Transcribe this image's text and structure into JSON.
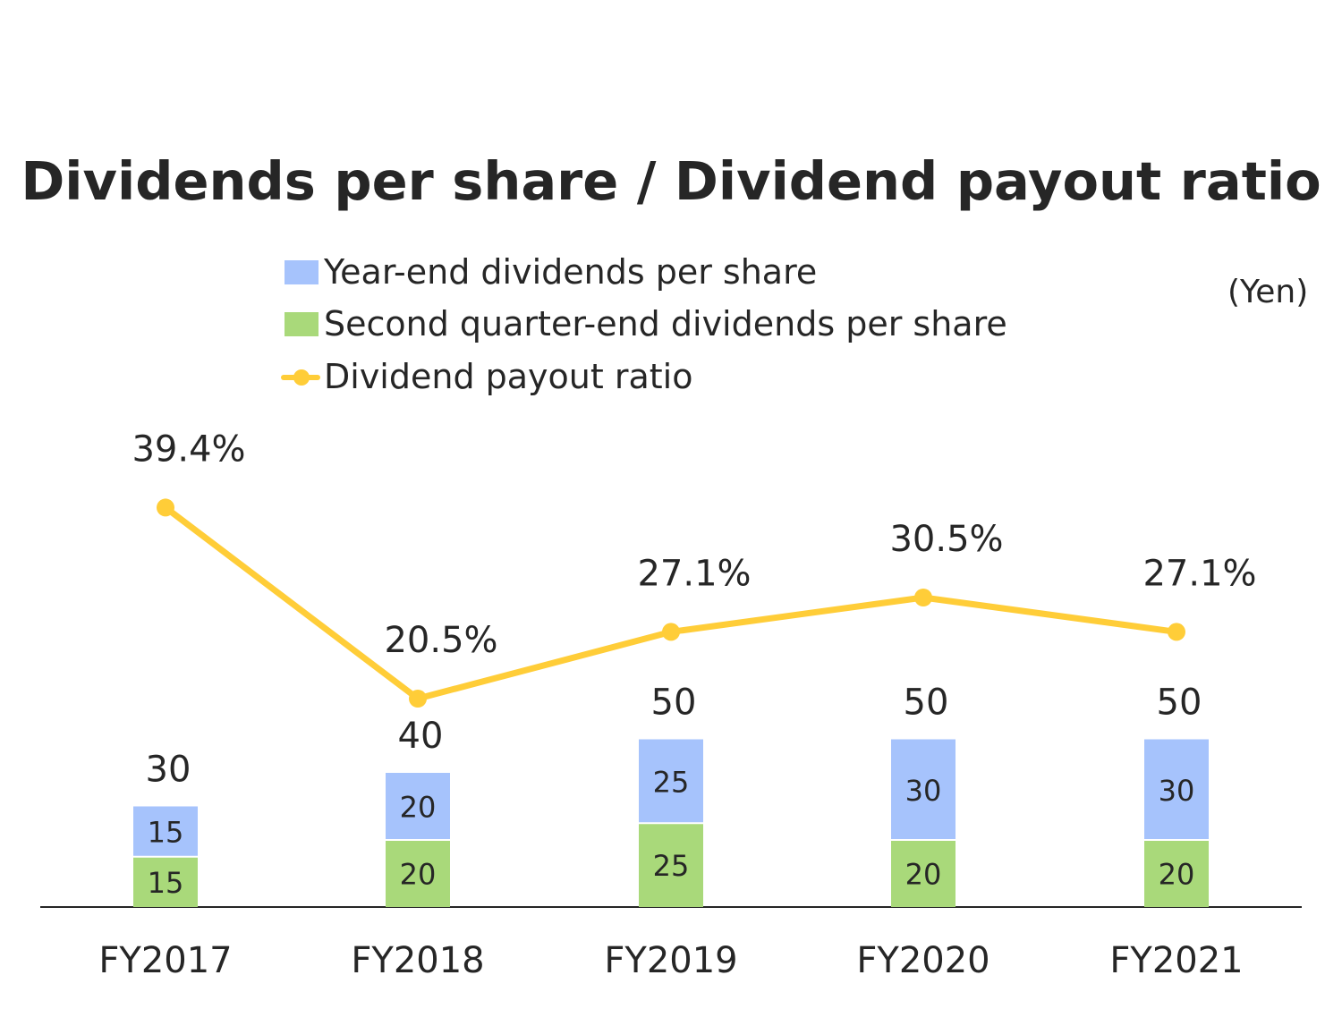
{
  "chart_data": {
    "type": "bar",
    "title": "Dividends per share / Dividend payout ratio",
    "unit_label": "(Yen)",
    "categories": [
      "FY2017",
      "FY2018",
      "FY2019",
      "FY2020",
      "FY2021"
    ],
    "stacked": true,
    "series": [
      {
        "name": "Second quarter-end dividends per share",
        "type": "bar",
        "color": "#A9D97A",
        "values": [
          15,
          20,
          25,
          20,
          20
        ]
      },
      {
        "name": "Year-end dividends per share",
        "type": "bar",
        "color": "#A6C3FC",
        "values": [
          15,
          20,
          25,
          30,
          30
        ]
      },
      {
        "name": "Dividend payout ratio",
        "type": "line",
        "color": "#FFCD38",
        "values": [
          39.4,
          20.5,
          27.1,
          30.5,
          27.1
        ],
        "labels": [
          "39.4%",
          "20.5%",
          "27.1%",
          "30.5%",
          "27.1%"
        ]
      }
    ],
    "totals": [
      30,
      40,
      50,
      50,
      50
    ],
    "legend_order": [
      "Year-end dividends per share",
      "Second quarter-end dividends per share",
      "Dividend payout ratio"
    ],
    "legend_position": "top",
    "grid": false
  }
}
